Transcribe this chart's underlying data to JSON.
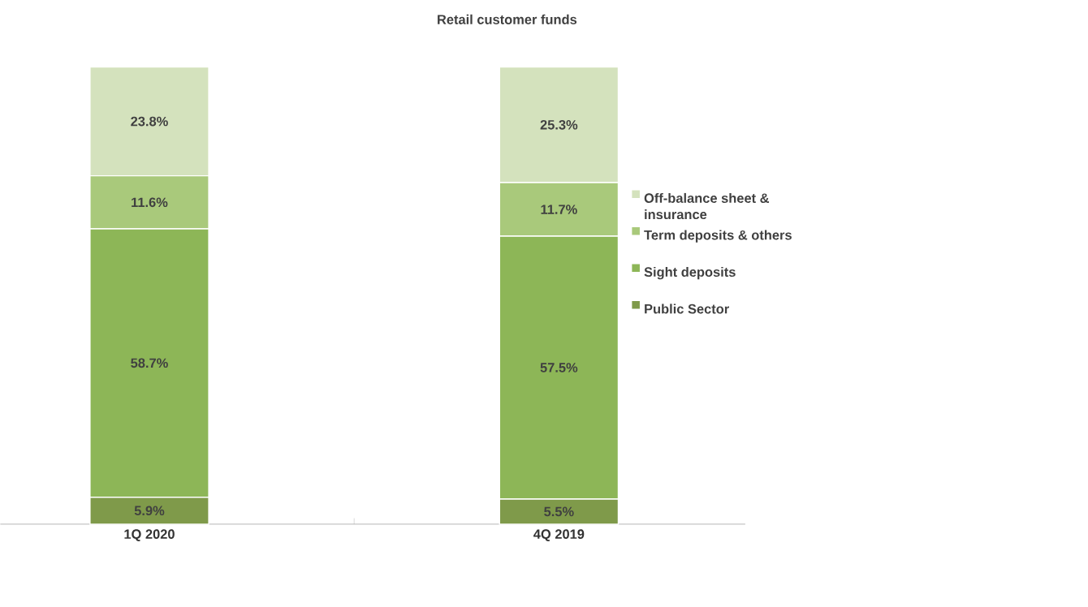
{
  "chart_data": {
    "type": "bar",
    "title": "Retail customer funds",
    "stacked": true,
    "legend": "right",
    "categories": [
      "1Q 2020",
      "4Q 2019"
    ],
    "series": [
      {
        "name": "Public Sector",
        "color": "#7f9a4a",
        "values": [
          5.9,
          5.5
        ],
        "value_labels": [
          "5.9%",
          "5.5%"
        ]
      },
      {
        "name": "Sight deposits",
        "color": "#8db657",
        "values": [
          58.7,
          57.5
        ],
        "value_labels": [
          "58.7%",
          "57.5%"
        ]
      },
      {
        "name": "Term deposits & others",
        "color": "#a9c97b",
        "values": [
          11.6,
          11.7
        ],
        "value_labels": [
          "11.6%",
          "11.7%"
        ]
      },
      {
        "name": "Off-balance sheet & insurance",
        "color": "#d4e2bd",
        "values": [
          23.8,
          25.3
        ],
        "value_labels": [
          "23.8%",
          "25.3%"
        ]
      }
    ],
    "tick_labels": "x"
  }
}
